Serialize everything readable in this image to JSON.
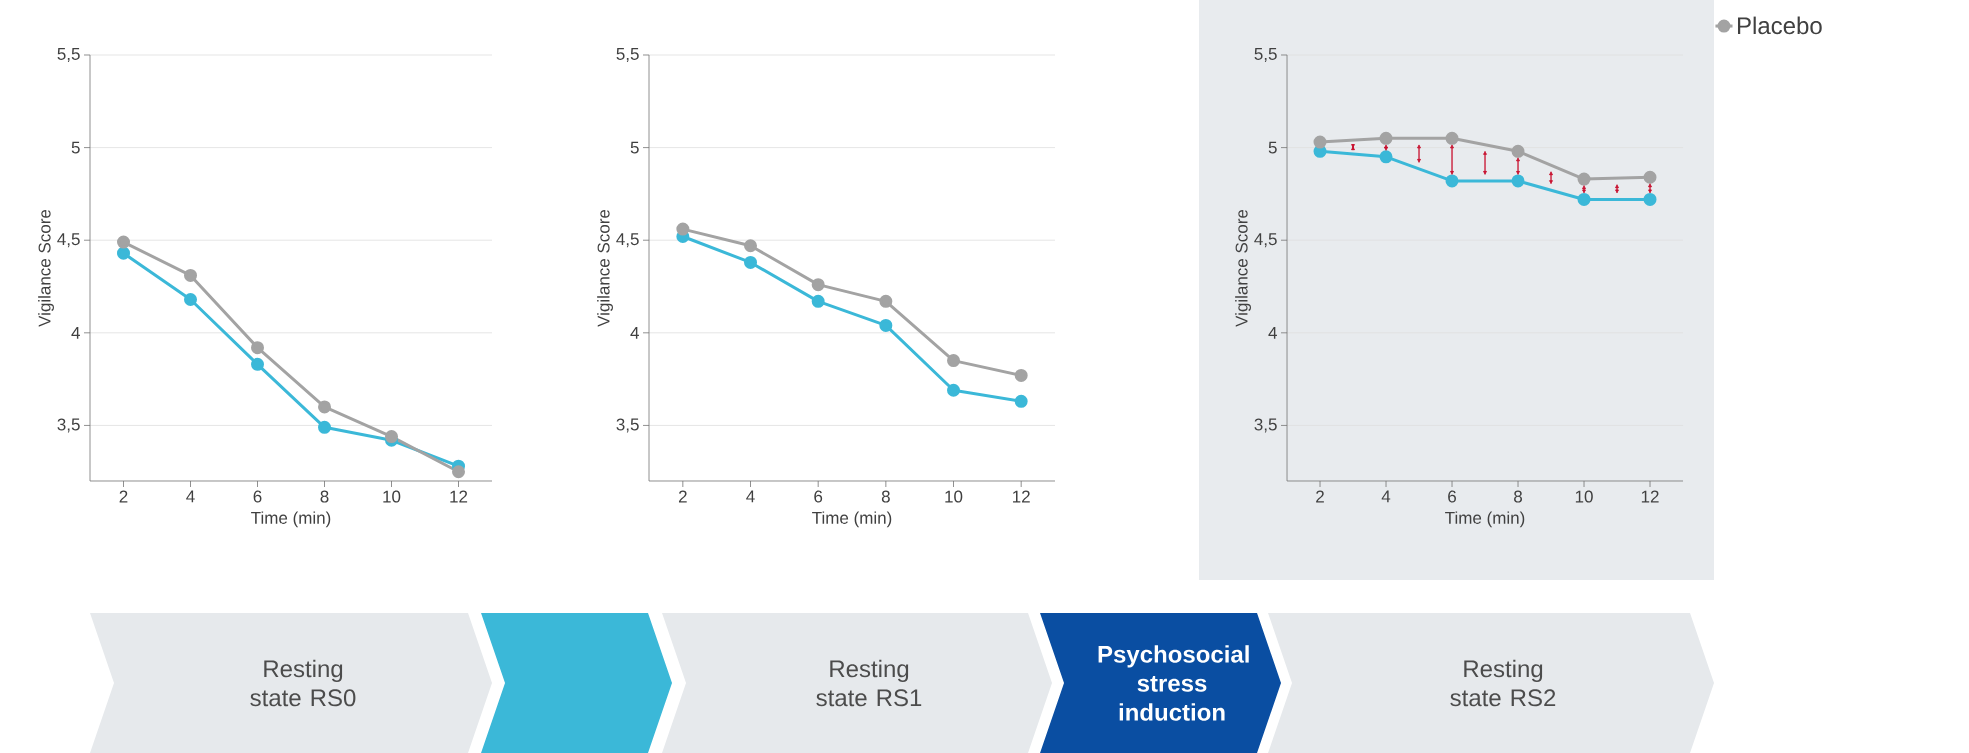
{
  "chart_data": [
    {
      "type": "line",
      "x": [
        2,
        4,
        6,
        8,
        10,
        12
      ],
      "xlim": [
        1,
        13
      ],
      "xticks": [
        2,
        4,
        6,
        8,
        10,
        12
      ],
      "ylim": [
        3.2,
        5.5
      ],
      "yticks": [
        {
          "value": 3.5,
          "label": "3,5"
        },
        4,
        {
          "value": 4.5,
          "label": "4,5"
        },
        5,
        {
          "value": 5.5,
          "label": "5,5"
        }
      ],
      "xlabel": "Time (min)",
      "ylabel": "Vigilance Score",
      "grid": "y",
      "marker": "circle",
      "legend": false,
      "series": [
        {
          "color": "#3bb8d8",
          "values": [
            4.43,
            4.18,
            3.83,
            3.49,
            3.42,
            3.28
          ]
        },
        {
          "color": "#a3a3a3",
          "values": [
            4.49,
            4.31,
            3.92,
            3.6,
            3.44,
            3.25
          ]
        }
      ]
    },
    {
      "type": "line",
      "x": [
        2,
        4,
        6,
        8,
        10,
        12
      ],
      "xlim": [
        1,
        13
      ],
      "xticks": [
        2,
        4,
        6,
        8,
        10,
        12
      ],
      "ylim": [
        3.2,
        5.5
      ],
      "yticks": [
        {
          "value": 3.5,
          "label": "3,5"
        },
        4,
        {
          "value": 4.5,
          "label": "4,5"
        },
        5,
        {
          "value": 5.5,
          "label": "5,5"
        }
      ],
      "xlabel": "Time (min)",
      "ylabel": "Vigilance Score",
      "grid": "y",
      "marker": "circle",
      "legend": false,
      "series": [
        {
          "color": "#3bb8d8",
          "values": [
            4.52,
            4.38,
            4.17,
            4.04,
            3.69,
            3.63
          ]
        },
        {
          "color": "#a3a3a3",
          "values": [
            4.56,
            4.47,
            4.26,
            4.17,
            3.85,
            3.77
          ]
        }
      ]
    },
    {
      "type": "line",
      "x": [
        2,
        4,
        6,
        8,
        10,
        12
      ],
      "xlim": [
        1,
        13
      ],
      "xticks": [
        2,
        4,
        6,
        8,
        10,
        12
      ],
      "ylim": [
        3.2,
        5.5
      ],
      "yticks": [
        {
          "value": 3.5,
          "label": "3,5"
        },
        4,
        {
          "value": 4.5,
          "label": "4,5"
        },
        5,
        {
          "value": 5.5,
          "label": "5,5"
        }
      ],
      "xlabel": "Time (min)",
      "ylabel": "Vigilance Score",
      "grid": "y",
      "marker": "circle",
      "legend": "top right",
      "series": [
        {
          "color": "#3bb8d8",
          "values": [
            4.98,
            4.95,
            4.82,
            4.82,
            4.72,
            4.72
          ]
        },
        {
          "name": "Placebo",
          "color": "#a3a3a3",
          "values": [
            5.03,
            5.05,
            5.05,
            4.98,
            4.83,
            4.84
          ]
        }
      ]
    },
    {
      "type": "other",
      "categories": [
        "Resting state RS0",
        null,
        "Resting state RS1",
        "Psychosocial stress induction",
        "Resting state RS2"
      ],
      "colors": [
        "#e6e9ec",
        "#3bb8d8",
        "#e6e9ec",
        "#0a4ea2",
        "#e6e9ec"
      ]
    }
  ]
}
